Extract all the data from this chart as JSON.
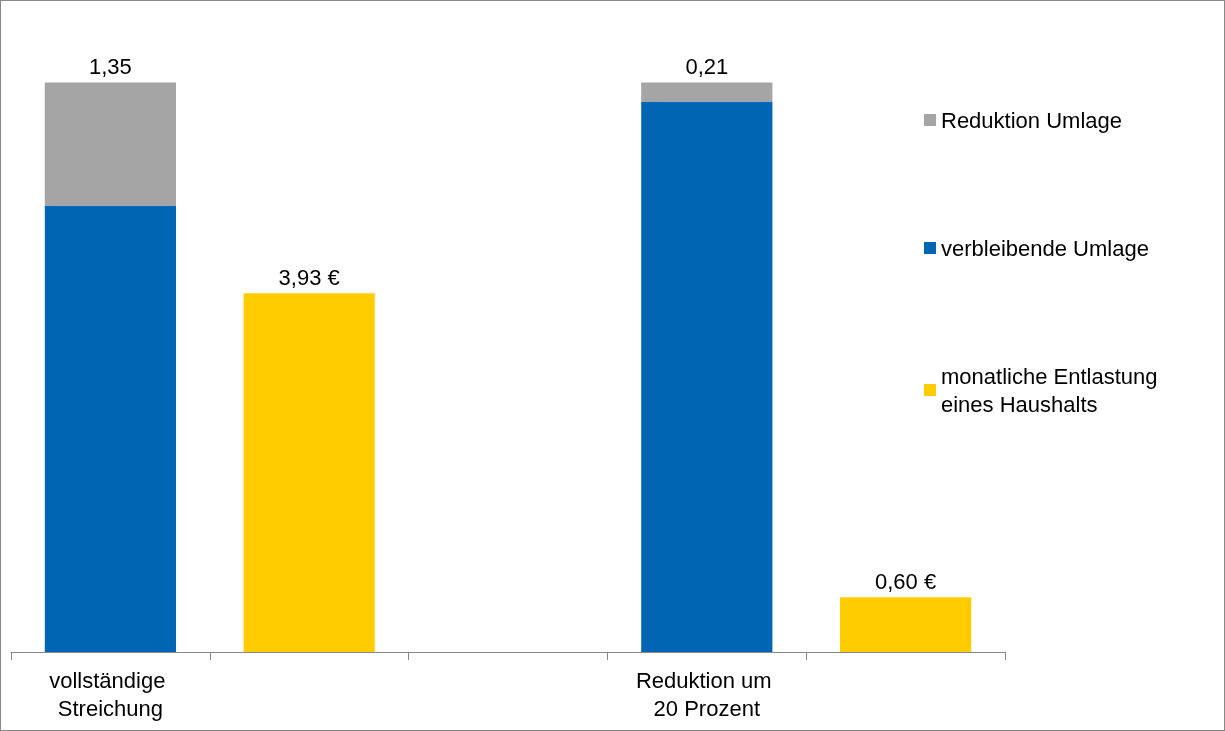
{
  "chart_data": {
    "type": "bar",
    "stacked": true,
    "categories": [
      "vollständige Streichung",
      null,
      null,
      "Reduktion um 20 Prozent",
      null
    ],
    "series": [
      {
        "name": "verbleibende Umlage",
        "color": "#0066b3",
        "values": [
          4.89,
          null,
          null,
          6.03,
          null
        ]
      },
      {
        "name": "Reduktion Umlage",
        "color": "#a5a5a5",
        "values": [
          1.35,
          null,
          null,
          0.21,
          null
        ],
        "value_labels": [
          "1,35",
          null,
          null,
          "0,21",
          null
        ]
      },
      {
        "name": "monatliche Entlastung eines Haushalts",
        "color": "#ffcc00",
        "values": [
          null,
          3.93,
          null,
          null,
          0.6
        ],
        "value_labels": [
          null,
          "3,93 €",
          null,
          null,
          "0,60 €"
        ]
      }
    ],
    "tick_labels": "x",
    "grid": false,
    "legend": "right"
  }
}
